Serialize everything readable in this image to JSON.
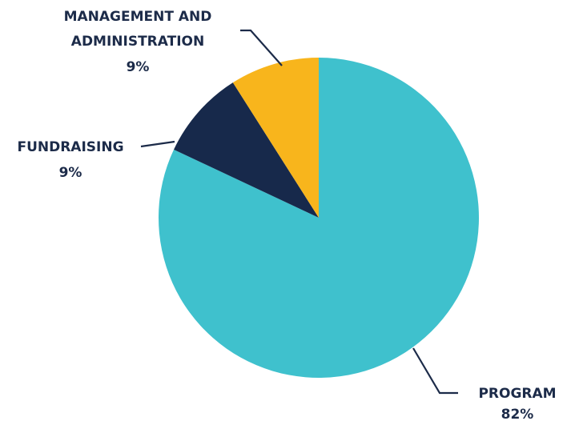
{
  "chart_data": {
    "type": "pie",
    "slices": [
      {
        "label_lines": [
          "PROGRAM"
        ],
        "value_label": "82%",
        "value": 82,
        "color": "#3fc1cd"
      },
      {
        "label_lines": [
          "FUNDRAISING"
        ],
        "value_label": "9%",
        "value": 9,
        "color": "#17294b"
      },
      {
        "label_lines": [
          "MANAGEMENT AND",
          "ADMINISTRATION"
        ],
        "value_label": "9%",
        "value": 9,
        "color": "#f8b51c"
      }
    ],
    "start_angle_deg": 0,
    "direction": "clockwise",
    "legend": "none"
  }
}
